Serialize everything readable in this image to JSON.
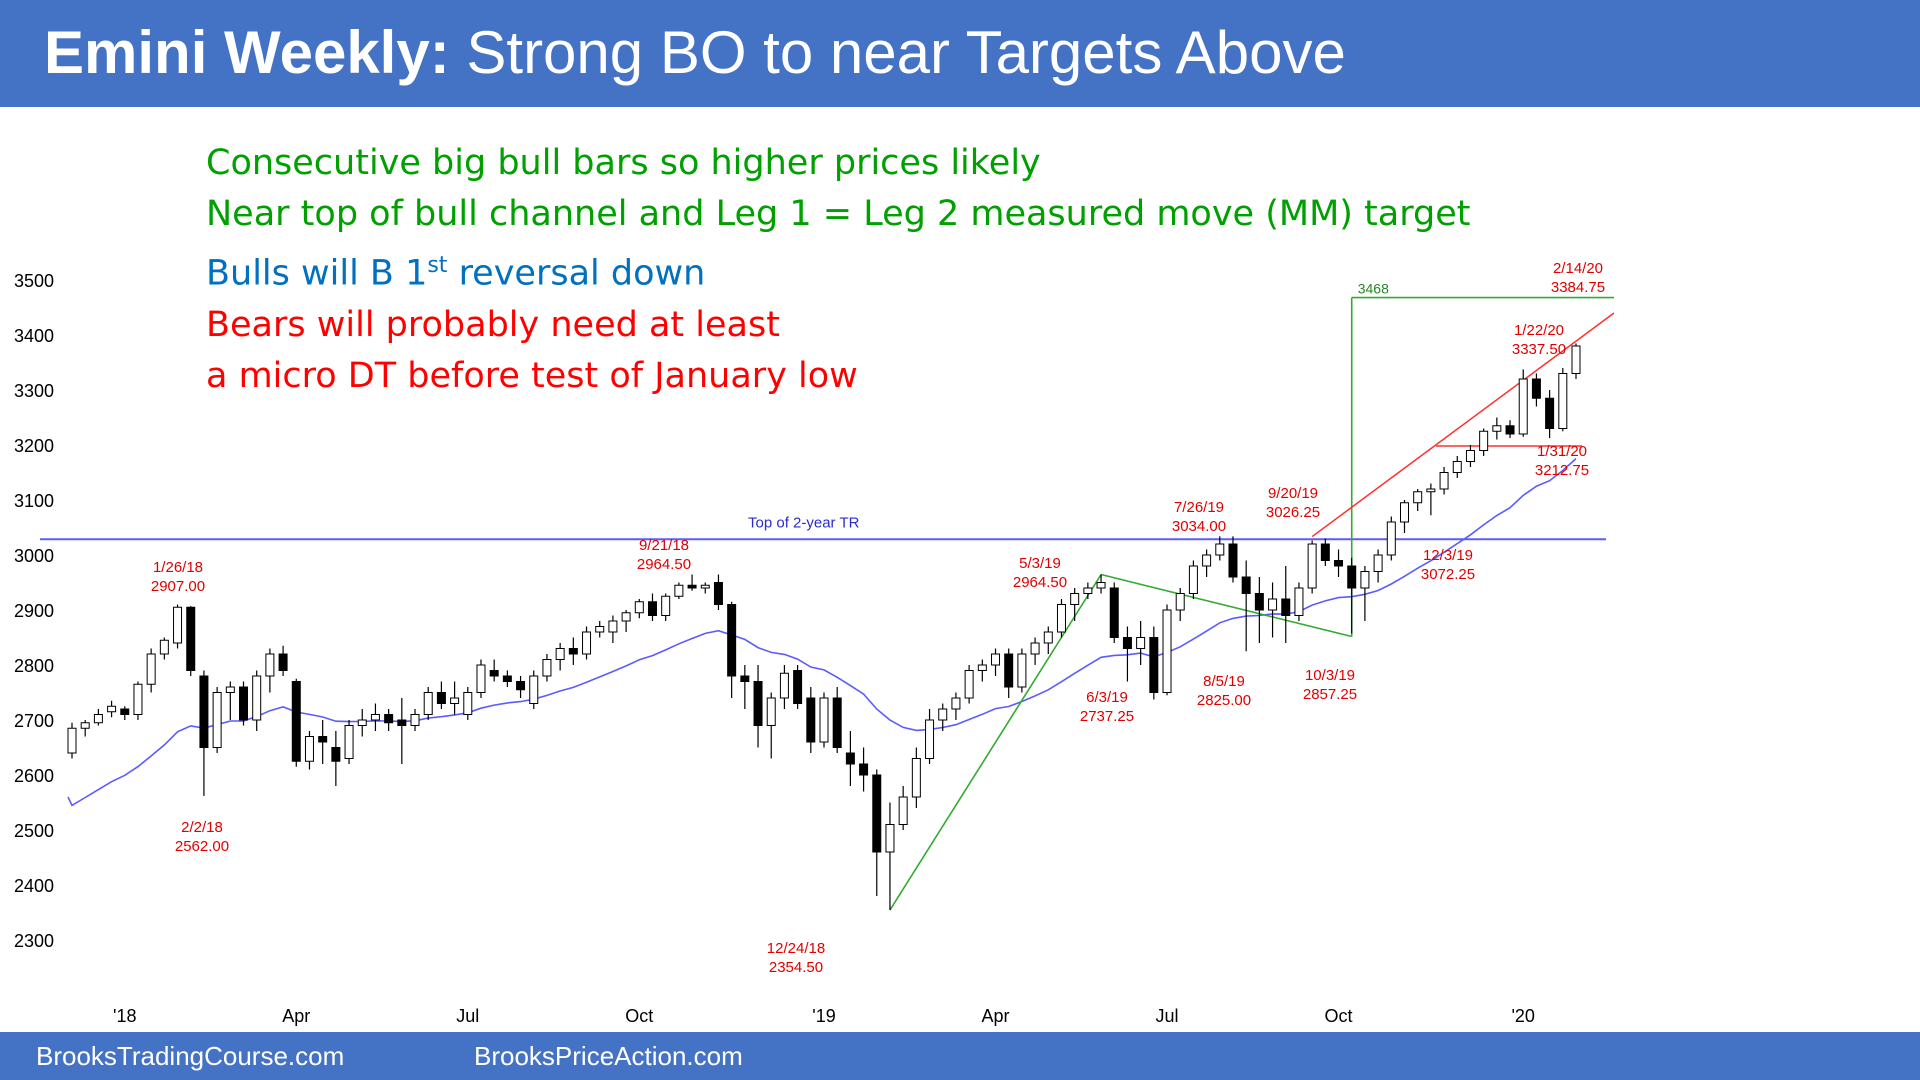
{
  "header": {
    "title_bold": "Emini Weekly:",
    "title_rest": " Strong BO to near Targets Above"
  },
  "footer": {
    "left": "BrooksTradingCourse.com",
    "right": "BrooksPriceAction.com"
  },
  "notes": {
    "line1": "Consecutive big bull bars so higher prices likely",
    "line2": "Near top of bull channel and Leg 1 = Leg 2 measured move (MM) target",
    "line3_a": "Bulls will B 1",
    "line3_sup": "st",
    "line3_b": " reversal down",
    "line4": "Bears will probably need at least",
    "line5": "a micro DT before test of January low"
  },
  "colors": {
    "header_bg": "#4472c4",
    "bull_note": "#00a000",
    "blue_note": "#0070c0",
    "bear_note": "#ff0000",
    "candle_bear": "#000000",
    "candle_bull": "#ffffff",
    "ema": "#5b5bff",
    "trading_range_line": "#5b5bff",
    "trend_lines": "#33aa33",
    "channel_line": "#ff3030"
  },
  "chart_data": {
    "type": "candlestick",
    "ylim": [
      2230,
      3560
    ],
    "y_ticks": [
      2300,
      2400,
      2500,
      2600,
      2700,
      2800,
      2900,
      3000,
      3100,
      3200,
      3300,
      3400,
      3500
    ],
    "x_ticks": [
      "'18",
      "Apr",
      "Jul",
      "Oct",
      "'19",
      "Apr",
      "Jul",
      "Oct",
      "'20"
    ],
    "weeks": 106,
    "ohlc": [
      [
        2640,
        2695,
        2630,
        2685
      ],
      [
        2685,
        2700,
        2670,
        2695
      ],
      [
        2695,
        2720,
        2690,
        2710
      ],
      [
        2715,
        2735,
        2705,
        2725
      ],
      [
        2720,
        2725,
        2700,
        2710
      ],
      [
        2710,
        2770,
        2700,
        2765
      ],
      [
        2765,
        2830,
        2750,
        2820
      ],
      [
        2820,
        2850,
        2810,
        2845
      ],
      [
        2840,
        2910,
        2830,
        2905
      ],
      [
        2905,
        2907,
        2780,
        2790
      ],
      [
        2780,
        2790,
        2562,
        2650
      ],
      [
        2650,
        2760,
        2640,
        2750
      ],
      [
        2750,
        2770,
        2700,
        2760
      ],
      [
        2760,
        2770,
        2690,
        2700
      ],
      [
        2700,
        2790,
        2680,
        2780
      ],
      [
        2780,
        2830,
        2750,
        2820
      ],
      [
        2820,
        2835,
        2780,
        2790
      ],
      [
        2770,
        2775,
        2615,
        2625
      ],
      [
        2625,
        2680,
        2610,
        2670
      ],
      [
        2670,
        2700,
        2620,
        2660
      ],
      [
        2650,
        2680,
        2580,
        2625
      ],
      [
        2630,
        2700,
        2620,
        2690
      ],
      [
        2690,
        2720,
        2670,
        2700
      ],
      [
        2700,
        2730,
        2680,
        2710
      ],
      [
        2710,
        2720,
        2680,
        2695
      ],
      [
        2700,
        2740,
        2620,
        2690
      ],
      [
        2690,
        2720,
        2680,
        2710
      ],
      [
        2710,
        2760,
        2700,
        2750
      ],
      [
        2750,
        2770,
        2720,
        2730
      ],
      [
        2730,
        2770,
        2710,
        2740
      ],
      [
        2710,
        2760,
        2700,
        2750
      ],
      [
        2750,
        2810,
        2740,
        2800
      ],
      [
        2790,
        2810,
        2770,
        2780
      ],
      [
        2780,
        2790,
        2760,
        2770
      ],
      [
        2770,
        2780,
        2740,
        2755
      ],
      [
        2730,
        2790,
        2720,
        2780
      ],
      [
        2780,
        2820,
        2770,
        2810
      ],
      [
        2810,
        2840,
        2790,
        2830
      ],
      [
        2830,
        2850,
        2800,
        2820
      ],
      [
        2820,
        2870,
        2810,
        2860
      ],
      [
        2860,
        2880,
        2850,
        2870
      ],
      [
        2860,
        2890,
        2840,
        2880
      ],
      [
        2880,
        2900,
        2860,
        2895
      ],
      [
        2895,
        2920,
        2885,
        2915
      ],
      [
        2915,
        2930,
        2880,
        2890
      ],
      [
        2890,
        2930,
        2880,
        2925
      ],
      [
        2925,
        2950,
        2920,
        2945
      ],
      [
        2945,
        2964.5,
        2935,
        2940
      ],
      [
        2940,
        2950,
        2930,
        2945
      ],
      [
        2950,
        2964.5,
        2900,
        2910
      ],
      [
        2910,
        2915,
        2740,
        2780
      ],
      [
        2780,
        2800,
        2720,
        2770
      ],
      [
        2770,
        2800,
        2650,
        2690
      ],
      [
        2690,
        2750,
        2630,
        2740
      ],
      [
        2740,
        2800,
        2720,
        2785
      ],
      [
        2790,
        2800,
        2720,
        2730
      ],
      [
        2740,
        2760,
        2640,
        2660
      ],
      [
        2660,
        2750,
        2650,
        2740
      ],
      [
        2740,
        2760,
        2640,
        2650
      ],
      [
        2640,
        2680,
        2580,
        2620
      ],
      [
        2620,
        2650,
        2570,
        2600
      ],
      [
        2600,
        2610,
        2380,
        2460
      ],
      [
        2460,
        2550,
        2354.5,
        2510
      ],
      [
        2510,
        2580,
        2500,
        2560
      ],
      [
        2560,
        2650,
        2540,
        2630
      ],
      [
        2630,
        2720,
        2620,
        2700
      ],
      [
        2700,
        2730,
        2680,
        2720
      ],
      [
        2720,
        2750,
        2700,
        2740
      ],
      [
        2740,
        2800,
        2730,
        2790
      ],
      [
        2790,
        2810,
        2770,
        2800
      ],
      [
        2800,
        2830,
        2780,
        2820
      ],
      [
        2820,
        2830,
        2740,
        2760
      ],
      [
        2760,
        2830,
        2750,
        2820
      ],
      [
        2820,
        2850,
        2800,
        2840
      ],
      [
        2840,
        2870,
        2820,
        2860
      ],
      [
        2860,
        2920,
        2850,
        2910
      ],
      [
        2910,
        2940,
        2880,
        2930
      ],
      [
        2930,
        2950,
        2920,
        2940
      ],
      [
        2940,
        2964.5,
        2930,
        2950
      ],
      [
        2940,
        2950,
        2840,
        2850
      ],
      [
        2850,
        2870,
        2770,
        2830
      ],
      [
        2830,
        2880,
        2800,
        2850
      ],
      [
        2850,
        2870,
        2737.25,
        2750
      ],
      [
        2750,
        2910,
        2745,
        2900
      ],
      [
        2900,
        2940,
        2880,
        2930
      ],
      [
        2930,
        2990,
        2920,
        2980
      ],
      [
        2980,
        3010,
        2960,
        3000
      ],
      [
        3000,
        3034,
        2990,
        3020
      ],
      [
        3020,
        3034,
        2950,
        2960
      ],
      [
        2960,
        2990,
        2825,
        2930
      ],
      [
        2930,
        2960,
        2840,
        2900
      ],
      [
        2900,
        2950,
        2850,
        2920
      ],
      [
        2920,
        2980,
        2840,
        2890
      ],
      [
        2890,
        2950,
        2880,
        2940
      ],
      [
        2940,
        3026.25,
        2930,
        3020
      ],
      [
        3020,
        3030,
        2980,
        2990
      ],
      [
        2990,
        3010,
        2960,
        2980
      ],
      [
        2980,
        2995,
        2857.25,
        2940
      ],
      [
        2940,
        2980,
        2880,
        2970
      ],
      [
        2970,
        3010,
        2950,
        3000
      ],
      [
        3000,
        3070,
        2990,
        3060
      ],
      [
        3060,
        3100,
        3040,
        3095
      ],
      [
        3095,
        3120,
        3080,
        3115
      ],
      [
        3115,
        3130,
        3072.25,
        3120
      ],
      [
        3120,
        3160,
        3110,
        3150
      ],
      [
        3150,
        3180,
        3140,
        3170
      ]
    ],
    "weekly_ohlc_tail": [
      [
        3170,
        3200,
        3160,
        3190
      ],
      [
        3190,
        3230,
        3180,
        3225
      ],
      [
        3225,
        3250,
        3210,
        3235
      ],
      [
        3235,
        3245,
        3212.75,
        3220
      ],
      [
        3220,
        3337.5,
        3215,
        3320
      ],
      [
        3320,
        3330,
        3270,
        3285
      ],
      [
        3285,
        3300,
        3212.75,
        3230
      ],
      [
        3230,
        3340,
        3225,
        3330
      ],
      [
        3330,
        3384.75,
        3320,
        3380
      ]
    ],
    "annotations": [
      {
        "label": "1/26/18",
        "value": "2907.00"
      },
      {
        "label": "2/2/18",
        "value": "2562.00"
      },
      {
        "label": "9/21/18",
        "value": "2964.50"
      },
      {
        "label": "12/24/18",
        "value": "2354.50"
      },
      {
        "label": "5/3/19",
        "value": "2964.50"
      },
      {
        "label": "6/3/19",
        "value": "2737.25"
      },
      {
        "label": "7/26/19",
        "value": "3034.00"
      },
      {
        "label": "8/5/19",
        "value": "2825.00"
      },
      {
        "label": "9/20/19",
        "value": "3026.25"
      },
      {
        "label": "10/3/19",
        "value": "2857.25"
      },
      {
        "label": "12/3/19",
        "value": "3072.25"
      },
      {
        "label": "1/22/20",
        "value": "3337.50"
      },
      {
        "label": "1/31/20",
        "value": "3212.75"
      },
      {
        "label": "2/14/20",
        "value": "3384.75"
      }
    ],
    "trading_range_label": "Top of 2-year TR",
    "trading_range_top": 3034,
    "mm_target_label": "3468",
    "mm_target": 3468
  }
}
